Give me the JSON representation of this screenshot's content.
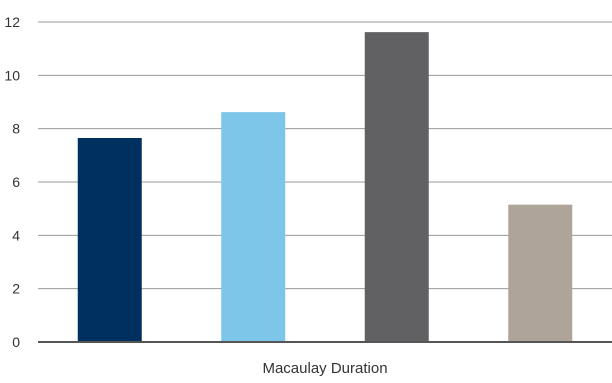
{
  "chart_data": {
    "type": "bar",
    "categories": [
      ""
    ],
    "series": [
      {
        "values": [
          7.65
        ],
        "color": "#00305f"
      },
      {
        "values": [
          8.62
        ],
        "color": "#7ec5ea"
      },
      {
        "values": [
          11.62
        ],
        "color": "#616163"
      },
      {
        "values": [
          5.15
        ],
        "color": "#aea49a"
      }
    ],
    "title": "",
    "xlabel": "Macaulay Duration",
    "ylabel": "",
    "ylim": [
      0,
      12
    ],
    "yticks": [
      "0",
      "2",
      "4",
      "6",
      "8",
      "10",
      "12"
    ],
    "grid": true,
    "legend": "none"
  }
}
